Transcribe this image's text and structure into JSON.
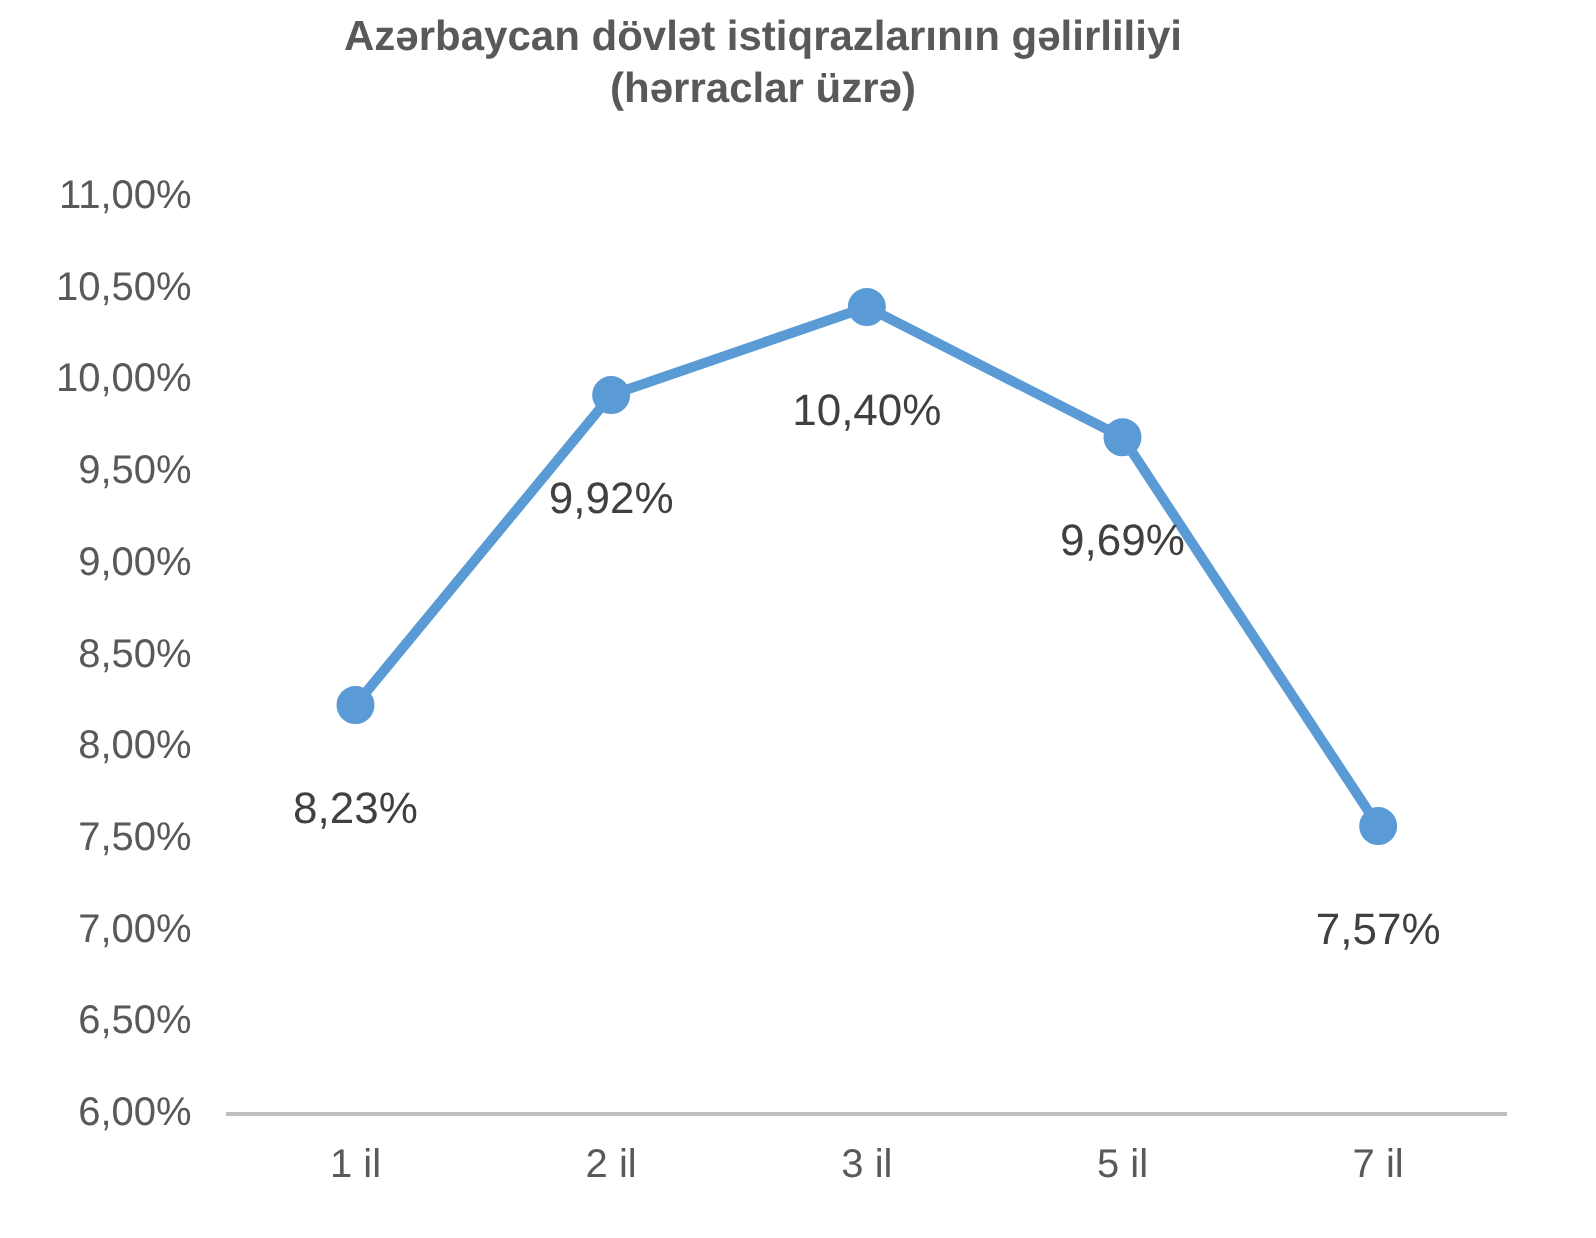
{
  "chart_data": {
    "type": "line",
    "title": "Azərbaycan dövlət istiqrazlarının gəlirliliyi\n(hərraclar üzrə)",
    "categories": [
      "1 il",
      "2 il",
      "3 il",
      "5 il",
      "7 il"
    ],
    "series": [
      {
        "color": "#5b9bd5",
        "values": [
          8.23,
          9.92,
          10.4,
          9.69,
          7.57
        ],
        "value_labels": [
          "8,23%",
          "9,92%",
          "10,40%",
          "9,69%",
          "7,57%"
        ]
      }
    ],
    "ylim": [
      6,
      11
    ],
    "yticks": [
      {
        "value": 6,
        "label": "6,00%"
      },
      {
        "value": 6.5,
        "label": "6,50%"
      },
      {
        "value": 7,
        "label": "7,00%"
      },
      {
        "value": 7.5,
        "label": "7,50%"
      },
      {
        "value": 8,
        "label": "8,00%"
      },
      {
        "value": 8.5,
        "label": "8,50%"
      },
      {
        "value": 9,
        "label": "9,00%"
      },
      {
        "value": 9.5,
        "label": "9,50%"
      },
      {
        "value": 10,
        "label": "10,00%"
      },
      {
        "value": 10.5,
        "label": "10,50%"
      },
      {
        "value": 11,
        "label": "11,00%"
      }
    ],
    "grid": false,
    "legend": false,
    "marker": "circle",
    "line_style": "solid"
  }
}
